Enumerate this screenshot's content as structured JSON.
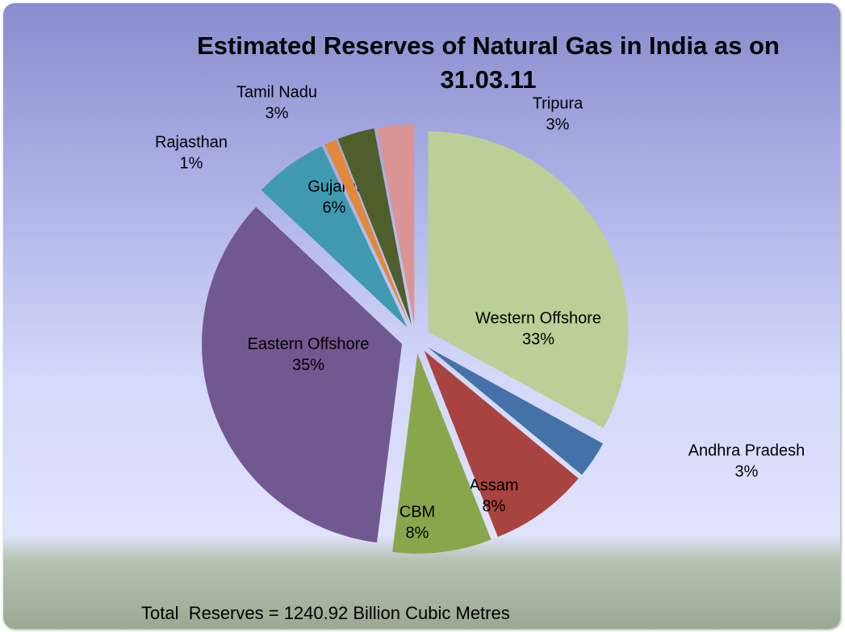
{
  "chart_data": {
    "type": "pie",
    "title": "Estimated Reserves of Natural Gas in India as on 31.03.11",
    "categories": [
      "Western Offshore",
      "Andhra Pradesh",
      "Assam",
      "CBM",
      "Eastern Offshore",
      "Gujarat",
      "Rajasthan",
      "Tamil Nadu",
      "Tripura"
    ],
    "values": [
      33,
      3,
      8,
      8,
      35,
      6,
      1,
      3,
      3
    ],
    "value_labels": [
      "33%",
      "3%",
      "8%",
      "8%",
      "35%",
      "6%",
      "1%",
      "3%",
      "3%"
    ],
    "colors": [
      "#bccf97",
      "#4472a8",
      "#a8433f",
      "#8aa64c",
      "#725891",
      "#3f9ab0",
      "#e0893a",
      "#4f5f2b",
      "#d99593"
    ],
    "annotation": "Total  Reserves = 1240.92 Billion Cubic Metres"
  }
}
